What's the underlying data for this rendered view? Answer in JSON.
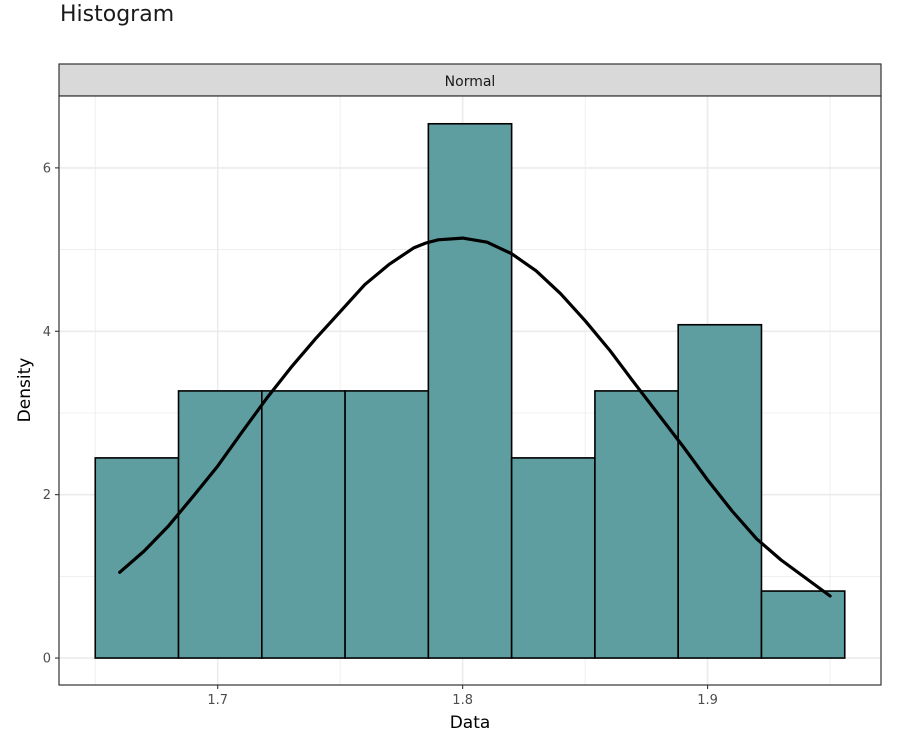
{
  "chart_data": {
    "type": "bar",
    "subtype": "histogram-with-density-curve",
    "title": "Histogram",
    "facet": "Normal",
    "xlabel": "Data",
    "ylabel": "Density",
    "xlim": [
      1.6352,
      1.9708
    ],
    "ylim": [
      -0.33,
      6.88
    ],
    "x_ticks": [
      1.7,
      1.8,
      1.9
    ],
    "x_tick_labels": [
      "1.7",
      "1.8",
      "1.9"
    ],
    "y_ticks": [
      0,
      2,
      4,
      6
    ],
    "y_tick_labels": [
      "0",
      "2",
      "4",
      "6"
    ],
    "grid": true,
    "bars": [
      {
        "x0": 1.65,
        "x1": 1.684,
        "density": 2.45
      },
      {
        "x0": 1.684,
        "x1": 1.718,
        "density": 3.27
      },
      {
        "x0": 1.718,
        "x1": 1.752,
        "density": 3.27
      },
      {
        "x0": 1.752,
        "x1": 1.786,
        "density": 3.27
      },
      {
        "x0": 1.786,
        "x1": 1.82,
        "density": 6.54
      },
      {
        "x0": 1.82,
        "x1": 1.854,
        "density": 2.45
      },
      {
        "x0": 1.854,
        "x1": 1.888,
        "density": 3.27
      },
      {
        "x0": 1.888,
        "x1": 1.922,
        "density": 4.08
      },
      {
        "x0": 1.922,
        "x1": 1.956,
        "density": 0.82
      }
    ],
    "curve": {
      "x": [
        1.66,
        1.67,
        1.68,
        1.69,
        1.7,
        1.71,
        1.72,
        1.73,
        1.74,
        1.75,
        1.76,
        1.77,
        1.78,
        1.785,
        1.79,
        1.8,
        1.81,
        1.82,
        1.83,
        1.84,
        1.85,
        1.86,
        1.87,
        1.88,
        1.89,
        1.9,
        1.91,
        1.92,
        1.93,
        1.94,
        1.95
      ],
      "y": [
        1.05,
        1.31,
        1.62,
        1.98,
        2.35,
        2.77,
        3.18,
        3.56,
        3.91,
        4.24,
        4.57,
        4.82,
        5.02,
        5.08,
        5.12,
        5.14,
        5.09,
        4.95,
        4.74,
        4.46,
        4.13,
        3.77,
        3.37,
        2.98,
        2.59,
        2.18,
        1.8,
        1.46,
        1.2,
        0.98,
        0.76
      ]
    },
    "colors": {
      "bar_fill": "#5f9ea0",
      "bar_stroke": "#000000",
      "curve": "#000000",
      "strip_fill": "#d9d9d9",
      "grid": "#ebebeb",
      "panel_border": "#333333"
    }
  }
}
